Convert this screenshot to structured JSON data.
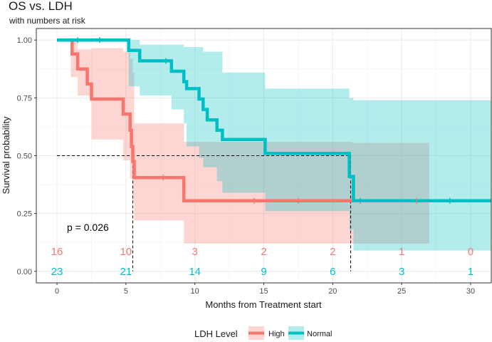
{
  "chart_data": {
    "type": "line",
    "subtype": "kaplan-meier",
    "title": "OS vs. LDH",
    "subtitle": "with numbers at risk",
    "xlabel": "Months from Treatment start",
    "ylabel": "Survival probability",
    "xlim": [
      -1.5,
      31.5
    ],
    "ylim": [
      -0.05,
      1.05
    ],
    "x_ticks": [
      0,
      5,
      10,
      15,
      20,
      25,
      30
    ],
    "x_tick_labels": [
      "0",
      "5",
      "10",
      "15",
      "20",
      "25",
      "30"
    ],
    "y_ticks": [
      0,
      0.25,
      0.5,
      0.75,
      1.0
    ],
    "y_tick_labels": [
      "0.00",
      "0.25",
      "0.50",
      "0.75",
      "1.00"
    ],
    "grid": true,
    "p_value_label": "p = 0.026",
    "median_reference": {
      "y": 0.5,
      "x_end": 21.3,
      "medians": [
        5.5,
        21.3
      ]
    },
    "series": [
      {
        "name": "High",
        "color": "#f8766d",
        "band_color": "#f8766d",
        "step": [
          [
            0,
            1.0
          ],
          [
            1.1,
            1.0
          ],
          [
            1.1,
            0.94
          ],
          [
            1.5,
            0.94
          ],
          [
            1.5,
            0.875
          ],
          [
            2.2,
            0.875
          ],
          [
            2.2,
            0.81
          ],
          [
            2.5,
            0.81
          ],
          [
            2.5,
            0.745
          ],
          [
            4.8,
            0.745
          ],
          [
            4.8,
            0.68
          ],
          [
            5.3,
            0.68
          ],
          [
            5.3,
            0.61
          ],
          [
            5.4,
            0.61
          ],
          [
            5.4,
            0.54
          ],
          [
            5.5,
            0.54
          ],
          [
            5.5,
            0.475
          ],
          [
            5.6,
            0.475
          ],
          [
            5.6,
            0.405
          ],
          [
            9.2,
            0.405
          ],
          [
            9.2,
            0.305
          ],
          [
            27,
            0.305
          ]
        ],
        "censor_x": [
          7.7,
          14.3,
          17.5,
          26.1
        ],
        "ci_upper": [
          [
            0,
            1.0
          ],
          [
            1.1,
            1.0
          ],
          [
            1.5,
            0.96
          ],
          [
            2.5,
            0.965
          ],
          [
            4.8,
            0.95
          ],
          [
            5.3,
            0.92
          ],
          [
            5.5,
            0.86
          ],
          [
            5.6,
            0.64
          ],
          [
            9.2,
            0.64
          ],
          [
            9.2,
            0.56
          ],
          [
            21.4,
            0.56
          ],
          [
            21.4,
            0.555
          ],
          [
            27,
            0.555
          ]
        ],
        "ci_lower": [
          [
            0,
            1.0
          ],
          [
            1.0,
            1.0
          ],
          [
            1.0,
            0.84
          ],
          [
            1.5,
            0.76
          ],
          [
            2.5,
            0.57
          ],
          [
            4.8,
            0.48
          ],
          [
            5.3,
            0.4
          ],
          [
            5.5,
            0.3
          ],
          [
            5.6,
            0.22
          ],
          [
            9.2,
            0.22
          ],
          [
            9.2,
            0.12
          ],
          [
            27,
            0.12
          ]
        ],
        "at_risk": [
          16,
          10,
          3,
          2,
          2,
          1,
          0
        ]
      },
      {
        "name": "Normal",
        "color": "#00bfc4",
        "band_color": "#00bfc4",
        "step": [
          [
            0,
            1.0
          ],
          [
            5.2,
            1.0
          ],
          [
            5.2,
            0.955
          ],
          [
            6.0,
            0.955
          ],
          [
            6.0,
            0.91
          ],
          [
            8.3,
            0.91
          ],
          [
            8.3,
            0.865
          ],
          [
            9.2,
            0.865
          ],
          [
            9.2,
            0.82
          ],
          [
            9.4,
            0.82
          ],
          [
            9.4,
            0.79
          ],
          [
            10.3,
            0.79
          ],
          [
            10.3,
            0.745
          ],
          [
            10.6,
            0.745
          ],
          [
            10.6,
            0.7
          ],
          [
            10.9,
            0.7
          ],
          [
            10.9,
            0.655
          ],
          [
            11.6,
            0.655
          ],
          [
            11.6,
            0.61
          ],
          [
            12.0,
            0.61
          ],
          [
            12.0,
            0.57
          ],
          [
            15.1,
            0.57
          ],
          [
            15.1,
            0.51
          ],
          [
            21.2,
            0.51
          ],
          [
            21.2,
            0.41
          ],
          [
            21.5,
            0.41
          ],
          [
            21.5,
            0.305
          ],
          [
            31.5,
            0.305
          ]
        ],
        "censor_x": [
          1.5,
          3.1,
          7.9,
          22.0,
          28.5
        ],
        "ci_upper": [
          [
            0,
            1.0
          ],
          [
            6.0,
            1.0
          ],
          [
            6.0,
            0.98
          ],
          [
            9.2,
            0.97
          ],
          [
            10.6,
            0.95
          ],
          [
            12.0,
            0.86
          ],
          [
            15.1,
            0.81
          ],
          [
            15.1,
            0.79
          ],
          [
            21.2,
            0.79
          ],
          [
            21.2,
            0.75
          ],
          [
            21.5,
            0.75
          ],
          [
            21.5,
            0.74
          ],
          [
            31.5,
            0.74
          ]
        ],
        "ci_lower": [
          [
            0,
            1.0
          ],
          [
            5.2,
            1.0
          ],
          [
            5.2,
            0.8
          ],
          [
            6.0,
            0.76
          ],
          [
            8.3,
            0.7
          ],
          [
            9.2,
            0.64
          ],
          [
            9.4,
            0.54
          ],
          [
            10.3,
            0.49
          ],
          [
            10.6,
            0.45
          ],
          [
            11.6,
            0.39
          ],
          [
            12.0,
            0.34
          ],
          [
            15.1,
            0.34
          ],
          [
            15.1,
            0.26
          ],
          [
            21.2,
            0.26
          ],
          [
            21.2,
            0.18
          ],
          [
            21.5,
            0.18
          ],
          [
            21.5,
            0.09
          ],
          [
            31.5,
            0.09
          ]
        ],
        "at_risk": [
          23,
          21,
          14,
          9,
          6,
          3,
          1
        ]
      }
    ],
    "legend": {
      "title": "LDH Level",
      "position": "bottom",
      "labels": [
        "High",
        "Normal"
      ]
    }
  }
}
